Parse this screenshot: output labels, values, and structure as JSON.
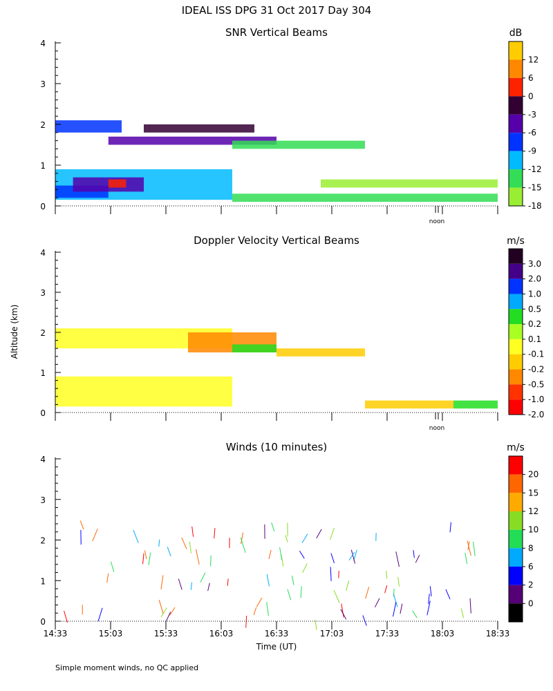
{
  "title": "IDEAL ISS DPG  31 Oct 2017 Day 304",
  "footnote": "Simple moment winds, no QC applied",
  "y_axis_label": "Altitude (km)",
  "x_axis_label": "Time (UT)",
  "x_tick_labels": [
    "14:33",
    "15:03",
    "15:33",
    "16:03",
    "16:33",
    "17:03",
    "17:33",
    "18:03",
    "18:33"
  ],
  "noon_label": "noon",
  "chart_data": [
    {
      "type": "heatmap",
      "title": "SNR Vertical Beams",
      "unit": "dB",
      "ylim": [
        0,
        4
      ],
      "y_ticks": [
        "0",
        "1",
        "2",
        "3",
        "4"
      ],
      "colorbar_labels": [
        "12",
        "6",
        "0",
        "-3",
        "-6",
        "-9",
        "-12",
        "-15",
        "-18"
      ],
      "colorbar_colors": [
        "#ffcc00",
        "#ff8800",
        "#ff2200",
        "#330033",
        "#5500aa",
        "#0033ff",
        "#00bbff",
        "#33dd55",
        "#99ee33"
      ],
      "regions": [
        {
          "t": [
            0.0,
            0.4
          ],
          "alt": [
            0.15,
            0.9
          ],
          "color_index": 6
        },
        {
          "t": [
            0.0,
            0.12
          ],
          "alt": [
            0.2,
            0.5
          ],
          "color_index": 5
        },
        {
          "t": [
            0.04,
            0.2
          ],
          "alt": [
            0.35,
            0.7
          ],
          "color_index": 4
        },
        {
          "t": [
            0.12,
            0.16
          ],
          "alt": [
            0.45,
            0.65
          ],
          "color_index": 2
        },
        {
          "t": [
            0.0,
            0.15
          ],
          "alt": [
            1.8,
            2.1
          ],
          "color_index": 5
        },
        {
          "t": [
            0.12,
            0.5
          ],
          "alt": [
            1.5,
            1.7
          ],
          "color_index": 4
        },
        {
          "t": [
            0.2,
            0.45
          ],
          "alt": [
            1.8,
            2.0
          ],
          "color_index": 3
        },
        {
          "t": [
            0.4,
            0.7
          ],
          "alt": [
            1.4,
            1.6
          ],
          "color_index": 7
        },
        {
          "t": [
            0.4,
            1.0
          ],
          "alt": [
            0.1,
            0.3
          ],
          "color_index": 7
        },
        {
          "t": [
            0.6,
            1.0
          ],
          "alt": [
            0.45,
            0.65
          ],
          "color_index": 8
        }
      ]
    },
    {
      "type": "heatmap",
      "title": "Doppler Velocity Vertical Beams",
      "unit": "m/s",
      "ylim": [
        0,
        4
      ],
      "y_ticks": [
        "0",
        "1",
        "2",
        "3",
        "4"
      ],
      "colorbar_labels": [
        "3.0",
        "2.0",
        "1.0",
        "0.5",
        "0.2",
        "0.1",
        "-0.1",
        "-0.2",
        "-0.5",
        "-1.0",
        "-2.0"
      ],
      "colorbar_colors": [
        "#220022",
        "#440088",
        "#0033ff",
        "#00aaff",
        "#22dd22",
        "#aaff22",
        "#ffff22",
        "#ffcc00",
        "#ff8800",
        "#ff3300",
        "#ff0000"
      ],
      "regions": [
        {
          "t": [
            0.0,
            0.4
          ],
          "alt": [
            0.15,
            0.9
          ],
          "color_index": 6
        },
        {
          "t": [
            0.0,
            0.4
          ],
          "alt": [
            1.6,
            2.1
          ],
          "color_index": 6
        },
        {
          "t": [
            0.3,
            0.5
          ],
          "alt": [
            1.5,
            2.0
          ],
          "color_index": 8
        },
        {
          "t": [
            0.4,
            0.5
          ],
          "alt": [
            1.5,
            1.7
          ],
          "color_index": 4
        },
        {
          "t": [
            0.5,
            0.7
          ],
          "alt": [
            1.4,
            1.6
          ],
          "color_index": 7
        },
        {
          "t": [
            0.7,
            0.9
          ],
          "alt": [
            0.1,
            0.3
          ],
          "color_index": 7
        },
        {
          "t": [
            0.9,
            1.0
          ],
          "alt": [
            0.1,
            0.3
          ],
          "color_index": 4
        }
      ]
    },
    {
      "type": "wind_barbs",
      "title": "Winds (10 minutes)",
      "unit": "m/s",
      "ylim": [
        0,
        4
      ],
      "y_ticks": [
        "0",
        "1",
        "2",
        "3",
        "4"
      ],
      "colorbar_labels": [
        "20",
        "15",
        "12",
        "10",
        "8",
        "6",
        "2",
        "0"
      ],
      "colorbar_colors": [
        "#ff0000",
        "#ff6600",
        "#ffaa00",
        "#88dd22",
        "#22dd55",
        "#00aaff",
        "#0000ff",
        "#550077",
        "#000000"
      ]
    }
  ]
}
